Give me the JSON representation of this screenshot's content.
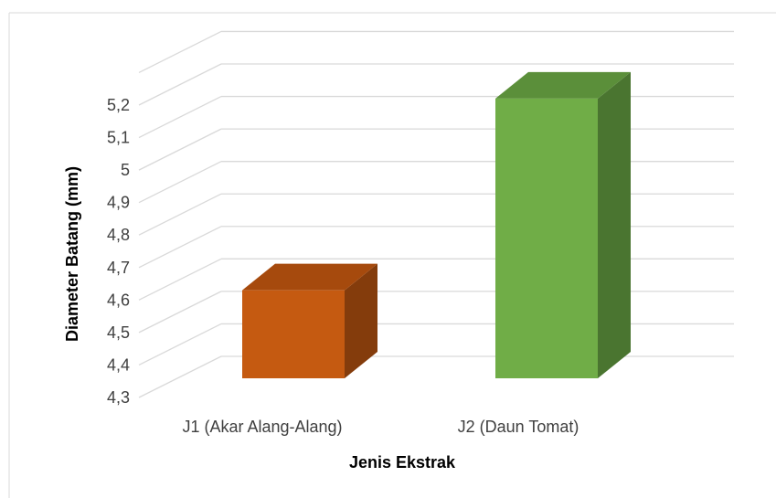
{
  "chart_data": {
    "type": "bar",
    "categories": [
      "J1 (Akar Alang-Alang)",
      "J2 (Daun Tomat)"
    ],
    "values": [
      4.63,
      5.22
    ],
    "xlabel": "Jenis Ekstrak",
    "ylabel": "Diameter Batang (mm)",
    "ylim": [
      4.3,
      5.3
    ],
    "yticks": [
      "4,3",
      "4,4",
      "4,5",
      "4,6",
      "4,7",
      "4,8",
      "4,9",
      "5",
      "5,1",
      "5,2"
    ],
    "grid": true,
    "style": "3d-column",
    "colors": {
      "J1 (Akar Alang-Alang)": {
        "front": "#c55a11",
        "top": "#a64a0d",
        "side": "#843c0c"
      },
      "J2 (Daun Tomat)": {
        "front": "#70ad47",
        "top": "#5b8f3a",
        "side": "#4a7530"
      },
      "grid": "#d9d9d9",
      "frame": "#d9d9d9"
    }
  }
}
